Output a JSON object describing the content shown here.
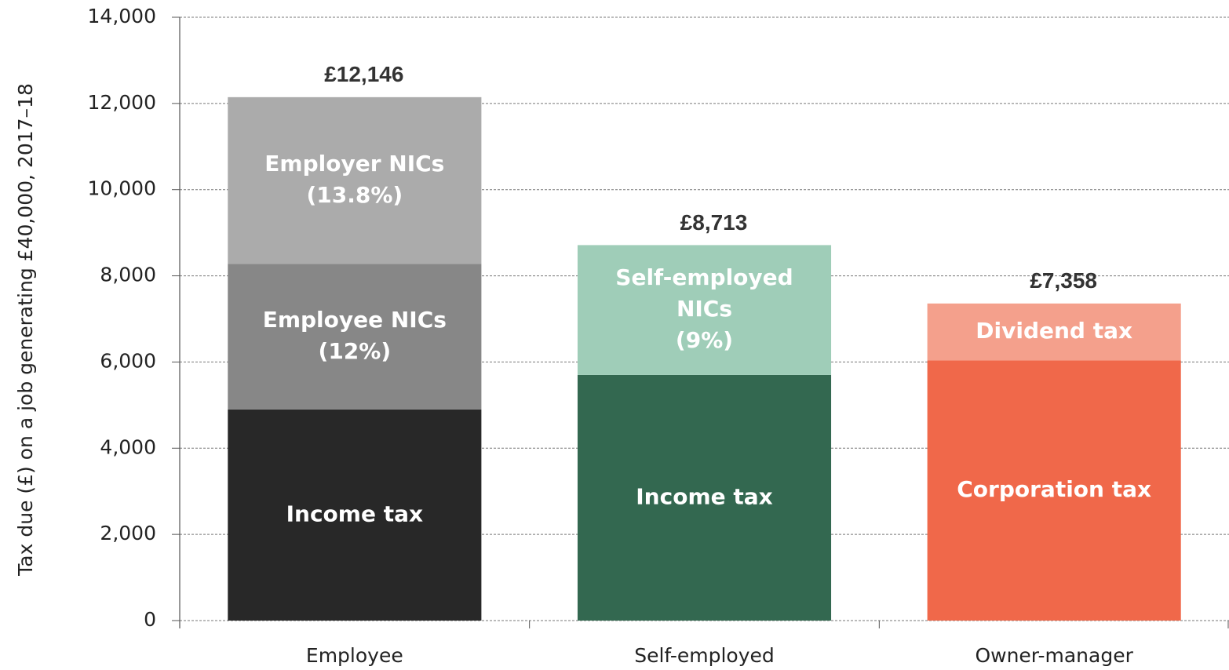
{
  "chart_data": {
    "type": "stacked-bar",
    "y_label": "Tax due (£) on a job generating £40,000, 2017–18",
    "categories": [
      "Employee",
      "Self-employed",
      "Owner-manager"
    ],
    "series": [
      {
        "name": [
          "Income tax"
        ],
        "color": "#282828",
        "values": [
          4900,
          null,
          null
        ]
      },
      {
        "name": [
          "Employee NICs",
          "(12%)"
        ],
        "color": "#878787",
        "values": [
          3380,
          null,
          null
        ]
      },
      {
        "name": [
          "Employer NICs",
          "(13.8%)"
        ],
        "color": "#ababab",
        "values": [
          3866,
          null,
          null
        ]
      },
      {
        "name": [
          "Income tax"
        ],
        "color": "#336850",
        "values": [
          null,
          5700,
          null
        ]
      },
      {
        "name": [
          "Self-employed",
          "NICs",
          "(9%)"
        ],
        "color": "#9fcdb8",
        "values": [
          null,
          3013,
          null
        ]
      },
      {
        "name": [
          "Corporation tax"
        ],
        "color": "#f0684a",
        "values": [
          null,
          null,
          6040
        ]
      },
      {
        "name": [
          "Dividend tax"
        ],
        "color": "#f4a08c",
        "values": [
          null,
          null,
          1318
        ]
      }
    ],
    "totals": [
      12146,
      8713,
      7358
    ],
    "total_labels": [
      "£12,146",
      "£8,713",
      "£7,358"
    ],
    "ylim": [
      0,
      14000
    ],
    "yticks": [
      0,
      {
        "value": 2000,
        "label": "2,000"
      },
      {
        "value": 4000,
        "label": "4,000"
      },
      {
        "value": 6000,
        "label": "6,000"
      },
      {
        "value": 8000,
        "label": "8,000"
      },
      {
        "value": 10000,
        "label": "10,000"
      },
      {
        "value": 12000,
        "label": "12,000"
      },
      {
        "value": 14000,
        "label": "14,000"
      }
    ],
    "grid": true
  }
}
